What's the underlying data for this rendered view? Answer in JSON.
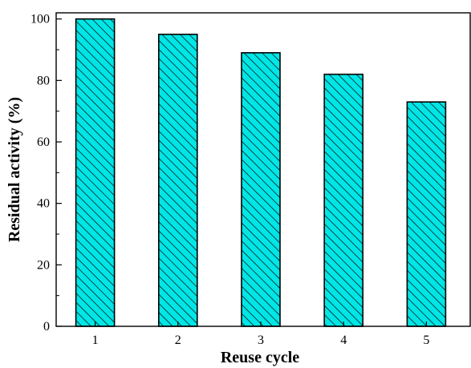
{
  "chart_data": {
    "type": "bar",
    "title": "",
    "xlabel": "Reuse cycle",
    "ylabel": "Residual activity (%)",
    "categories": [
      "1",
      "2",
      "3",
      "4",
      "5"
    ],
    "values": [
      100,
      95,
      89,
      82,
      73
    ],
    "ylim": [
      0,
      102
    ],
    "yticks": [
      0,
      20,
      40,
      60,
      80,
      100
    ],
    "ytick_labels": [
      "0",
      "20",
      "40",
      "60",
      "80",
      "100"
    ],
    "grid": false,
    "legend": "none",
    "bar_fill": "#00e6e6",
    "bar_hatch": "diagonal",
    "bar_stroke": "#000000"
  }
}
